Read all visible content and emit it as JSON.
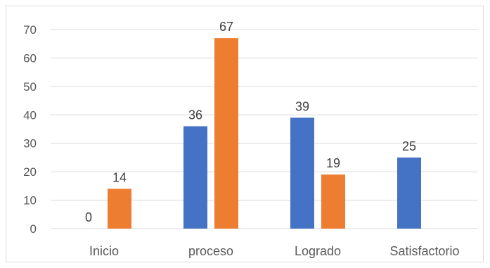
{
  "chart_data": {
    "type": "bar",
    "categories": [
      "Inicio",
      "proceso",
      "Logrado",
      "Satisfactorio"
    ],
    "series": [
      {
        "color": "#4472C4",
        "values": [
          0,
          36,
          39,
          25
        ]
      },
      {
        "color": "#ED7D31",
        "values": [
          14,
          67,
          19,
          null
        ]
      }
    ],
    "ylim": [
      0,
      70
    ],
    "yticks": [
      0,
      10,
      20,
      30,
      40,
      50,
      60,
      70
    ],
    "grid": true,
    "legend": "none",
    "title": "",
    "xlabel": "",
    "ylabel": ""
  }
}
